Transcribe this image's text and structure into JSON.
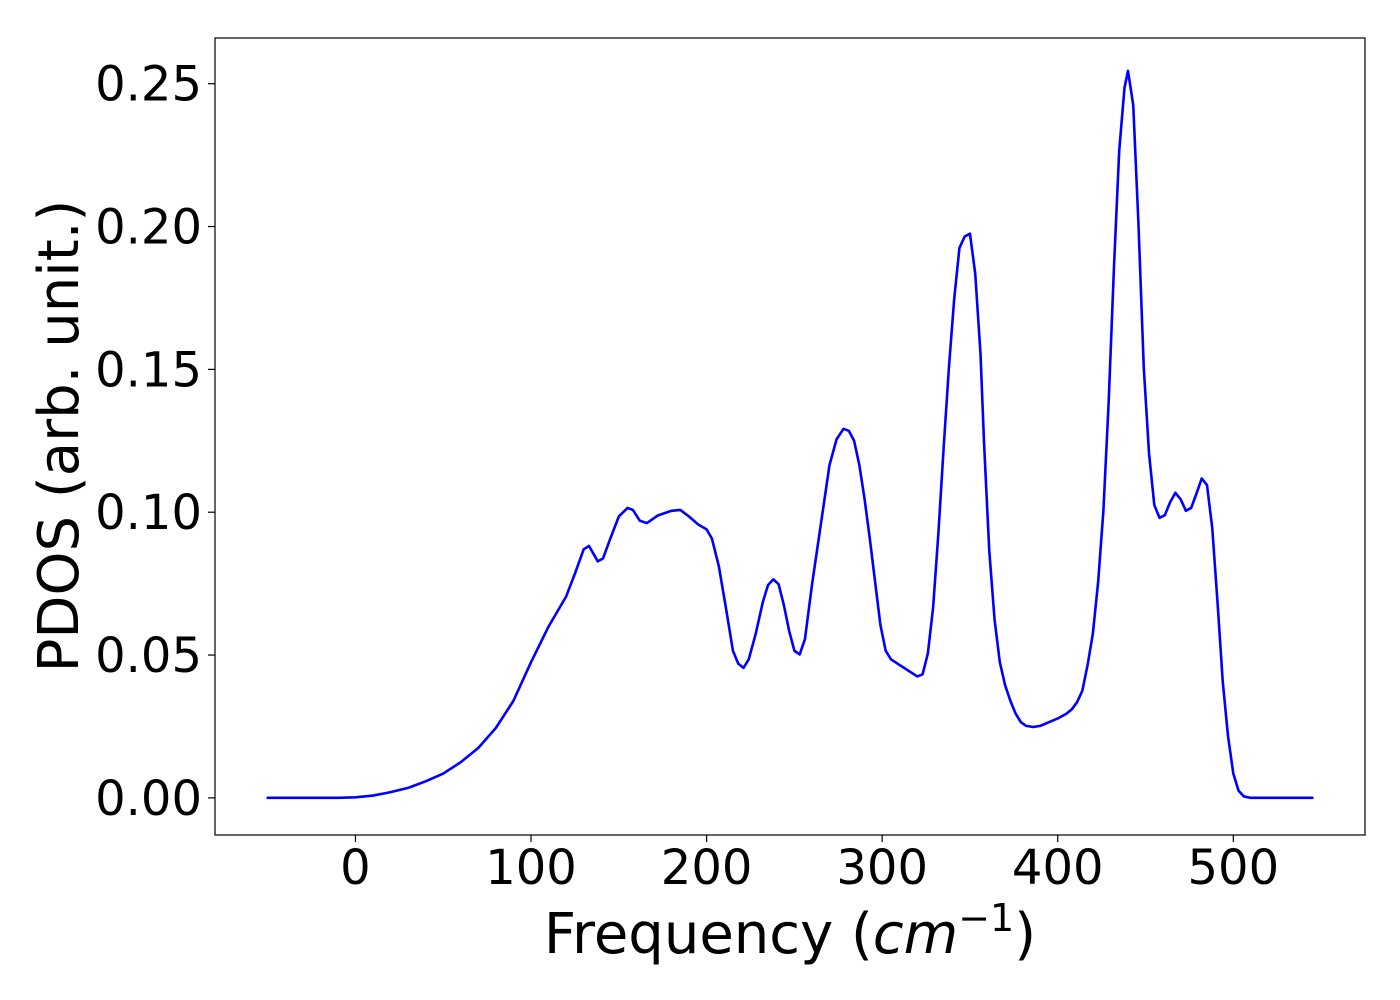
{
  "chart_data": {
    "type": "line",
    "xlabel_prefix": "Frequency (",
    "xlabel_unit": "cm",
    "xlabel_exponent": "−1",
    "xlabel_suffix": ")",
    "ylabel": "PDOS (arb. unit.)",
    "xlim": [
      -80,
      575
    ],
    "ylim": [
      -0.013,
      0.266
    ],
    "x_ticks": [
      0,
      100,
      200,
      300,
      400,
      500
    ],
    "x_tick_labels": [
      "0",
      "100",
      "200",
      "300",
      "400",
      "500"
    ],
    "y_ticks": [
      0.0,
      0.05,
      0.1,
      0.15,
      0.2,
      0.25
    ],
    "y_tick_labels": [
      "0.00",
      "0.05",
      "0.10",
      "0.15",
      "0.20",
      "0.25"
    ],
    "grid": false,
    "legend": false,
    "series": [
      {
        "color": "#0000ff",
        "x": [
          -50,
          -30,
          -10,
          0,
          10,
          20,
          30,
          40,
          50,
          60,
          70,
          80,
          90,
          100,
          110,
          120,
          125,
          130,
          133,
          138,
          141,
          145,
          150,
          155,
          158,
          162,
          166,
          172,
          180,
          185,
          190,
          195,
          200,
          203,
          207,
          211,
          215,
          218,
          221,
          224,
          228,
          232,
          235,
          238,
          241,
          244,
          247,
          250,
          253,
          256,
          260,
          265,
          270,
          274,
          278,
          281,
          284,
          287,
          290,
          293,
          296,
          299,
          302,
          305,
          310,
          315,
          320,
          323,
          326,
          329,
          332,
          335,
          338,
          341,
          344,
          347,
          350,
          353,
          356,
          358,
          361,
          364,
          367,
          370,
          373,
          376,
          379,
          382,
          386,
          390,
          395,
          400,
          405,
          408,
          411,
          414,
          417,
          420,
          423,
          426,
          429,
          432,
          435,
          438,
          440,
          443,
          446,
          449,
          452,
          455,
          458,
          461,
          464,
          467,
          470,
          473,
          476,
          479,
          482,
          485,
          488,
          491,
          494,
          497,
          500,
          503,
          506,
          510,
          520,
          530,
          545
        ],
        "y": [
          0.0,
          0.0,
          0.0,
          0.0002,
          0.0008,
          0.002,
          0.0035,
          0.0058,
          0.0085,
          0.0125,
          0.0175,
          0.0245,
          0.034,
          0.0475,
          0.06,
          0.0705,
          0.0785,
          0.087,
          0.0882,
          0.0828,
          0.0838,
          0.0905,
          0.0985,
          0.1015,
          0.1008,
          0.097,
          0.0962,
          0.0988,
          0.1005,
          0.1008,
          0.0985,
          0.0958,
          0.094,
          0.0908,
          0.081,
          0.0665,
          0.0515,
          0.047,
          0.0455,
          0.0485,
          0.0575,
          0.0685,
          0.0745,
          0.0765,
          0.0748,
          0.0675,
          0.0585,
          0.0515,
          0.0502,
          0.0555,
          0.0745,
          0.0955,
          0.1165,
          0.1255,
          0.1292,
          0.1285,
          0.125,
          0.1165,
          0.1045,
          0.0905,
          0.0755,
          0.0605,
          0.0515,
          0.0485,
          0.0465,
          0.0445,
          0.0425,
          0.0432,
          0.0505,
          0.0665,
          0.0925,
          0.1225,
          0.1505,
          0.1745,
          0.1925,
          0.1965,
          0.1975,
          0.1835,
          0.1555,
          0.1245,
          0.0865,
          0.0625,
          0.0475,
          0.0395,
          0.034,
          0.0295,
          0.0265,
          0.0252,
          0.0248,
          0.0252,
          0.0265,
          0.0278,
          0.0295,
          0.031,
          0.0335,
          0.0375,
          0.0465,
          0.0575,
          0.0755,
          0.1005,
          0.1385,
          0.1855,
          0.2265,
          0.2485,
          0.2545,
          0.2425,
          0.2005,
          0.1505,
          0.1205,
          0.1025,
          0.098,
          0.099,
          0.1035,
          0.1068,
          0.1045,
          0.1005,
          0.1015,
          0.1065,
          0.1118,
          0.1095,
          0.0945,
          0.0685,
          0.0405,
          0.0215,
          0.0085,
          0.0025,
          0.0005,
          0.0,
          0.0,
          0.0,
          0.0
        ]
      }
    ]
  }
}
